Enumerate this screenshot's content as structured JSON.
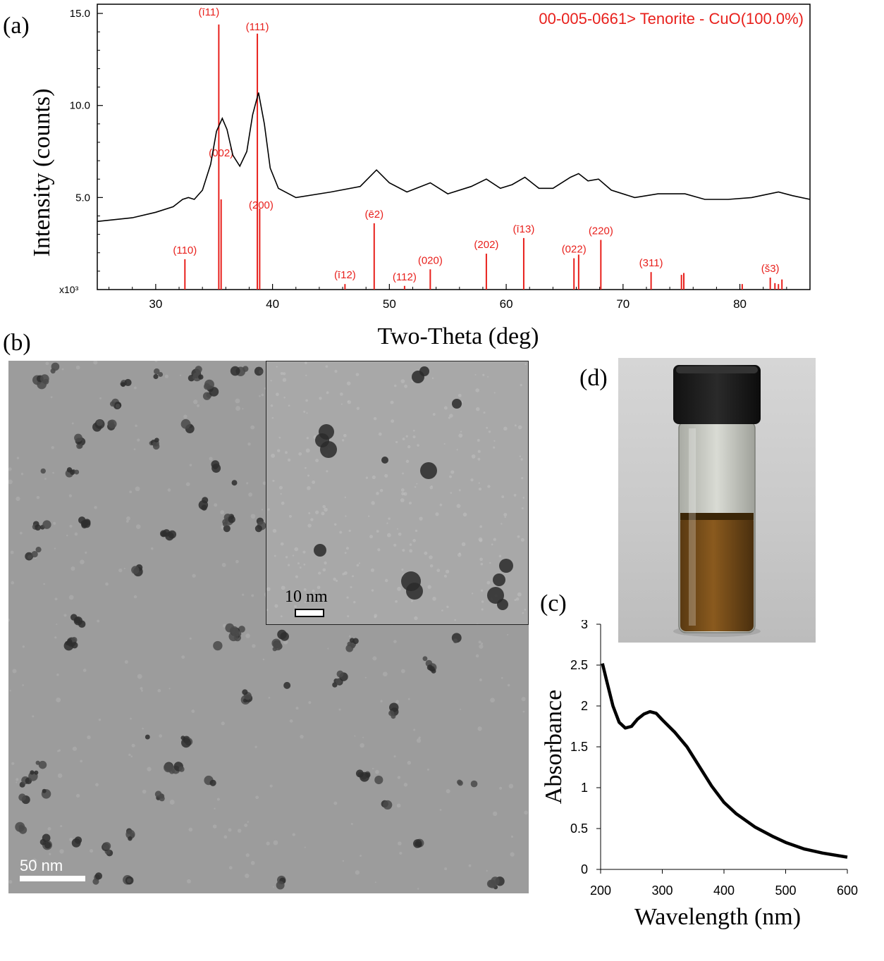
{
  "panels": {
    "a": "(a)",
    "b": "(b)",
    "c": "(c)",
    "d": "(d)"
  },
  "chart_data": [
    {
      "type": "line",
      "panel": "(a)",
      "title": "",
      "xlabel": "Two-Theta (deg)",
      "ylabel": "Intensity (counts)",
      "y_multiplier_label": "x10³",
      "xlim": [
        25,
        86
      ],
      "ylim": [
        0,
        15.5
      ],
      "x_ticks": [
        30,
        40,
        50,
        60,
        70,
        80
      ],
      "y_ticks": [
        5.0,
        10.0,
        15.0
      ],
      "y_tick_labels": [
        "5.0",
        "10.0",
        "15.0"
      ],
      "legend": "00-005-0661> Tenorite - CuO(100.0%)",
      "colors": {
        "pattern": "#000000",
        "reference": "#e8201c"
      },
      "series": [
        {
          "x": [
            25,
            28,
            30,
            31.5,
            32.3,
            32.8,
            33.3,
            34,
            34.7,
            35.2,
            35.7,
            36.1,
            36.6,
            37.2,
            37.8,
            38.3,
            38.8,
            39.3,
            39.8,
            40.5,
            42,
            45,
            47.5,
            48.9,
            50,
            51.5,
            53.5,
            55,
            57,
            58.3,
            59.5,
            60.5,
            61.6,
            62.8,
            64,
            65.5,
            66.2,
            67,
            67.9,
            69,
            71,
            73,
            75.3,
            77,
            79,
            81,
            83.3,
            84.5,
            86
          ],
          "y": [
            3.7,
            3.9,
            4.2,
            4.5,
            4.9,
            5.0,
            4.9,
            5.4,
            6.8,
            8.6,
            9.3,
            8.7,
            7.3,
            6.7,
            7.5,
            9.5,
            10.7,
            9.0,
            6.6,
            5.5,
            5.0,
            5.3,
            5.6,
            6.5,
            5.8,
            5.3,
            5.8,
            5.2,
            5.6,
            6.0,
            5.5,
            5.7,
            6.1,
            5.5,
            5.5,
            6.1,
            6.3,
            5.9,
            6.0,
            5.4,
            5.0,
            5.2,
            5.2,
            4.9,
            4.9,
            5.0,
            5.3,
            5.1,
            4.9
          ]
        }
      ],
      "reference_peaks": [
        {
          "x": 32.5,
          "height": 1.65,
          "label": "(110)"
        },
        {
          "x": 35.4,
          "height": 14.4,
          "label": "(ī11)"
        },
        {
          "x": 35.6,
          "height": 4.9,
          "label": "(002)"
        },
        {
          "x": 38.7,
          "height": 13.9,
          "label": "(111)"
        },
        {
          "x": 38.9,
          "height": 4.4,
          "label": "(200)"
        },
        {
          "x": 46.2,
          "height": 0.3,
          "label": "(ī12)"
        },
        {
          "x": 48.7,
          "height": 3.6,
          "label": "(ē2)"
        },
        {
          "x": 51.3,
          "height": 0.2,
          "label": "(112)"
        },
        {
          "x": 53.5,
          "height": 1.1,
          "label": "(020)"
        },
        {
          "x": 58.3,
          "height": 1.95,
          "label": "(202)"
        },
        {
          "x": 61.5,
          "height": 2.8,
          "label": "(ī13)"
        },
        {
          "x": 65.8,
          "height": 1.7,
          "label": "(022)"
        },
        {
          "x": 66.2,
          "height": 1.9,
          "label": ""
        },
        {
          "x": 68.1,
          "height": 2.7,
          "label": "(220)"
        },
        {
          "x": 72.4,
          "height": 0.95,
          "label": "(311)"
        },
        {
          "x": 75.0,
          "height": 0.8,
          "label": ""
        },
        {
          "x": 75.2,
          "height": 0.9,
          "label": ""
        },
        {
          "x": 80.2,
          "height": 0.3,
          "label": ""
        },
        {
          "x": 82.6,
          "height": 0.65,
          "label": "(š3)"
        },
        {
          "x": 83.0,
          "height": 0.35,
          "label": ""
        },
        {
          "x": 83.3,
          "height": 0.3,
          "label": ""
        },
        {
          "x": 83.6,
          "height": 0.55,
          "label": ""
        }
      ]
    },
    {
      "type": "line",
      "panel": "(c)",
      "title": "",
      "xlabel": "Wavelength (nm)",
      "ylabel": "Absorbance",
      "xlim": [
        200,
        600
      ],
      "ylim": [
        0,
        3
      ],
      "x_ticks": [
        200,
        300,
        400,
        500,
        600
      ],
      "y_ticks": [
        0,
        0.5,
        1,
        1.5,
        2,
        2.5,
        3
      ],
      "colors": {
        "line": "#000000"
      },
      "series": [
        {
          "x": [
            203,
            210,
            220,
            230,
            240,
            250,
            260,
            270,
            280,
            290,
            300,
            320,
            340,
            360,
            380,
            400,
            420,
            450,
            480,
            500,
            530,
            560,
            600
          ],
          "y": [
            2.52,
            2.3,
            2.0,
            1.8,
            1.73,
            1.75,
            1.84,
            1.9,
            1.93,
            1.91,
            1.83,
            1.68,
            1.5,
            1.26,
            1.02,
            0.82,
            0.68,
            0.52,
            0.4,
            0.33,
            0.25,
            0.2,
            0.15
          ]
        }
      ]
    }
  ],
  "tem": {
    "main_scale": "50 nm",
    "inset_scale": "10 nm"
  }
}
